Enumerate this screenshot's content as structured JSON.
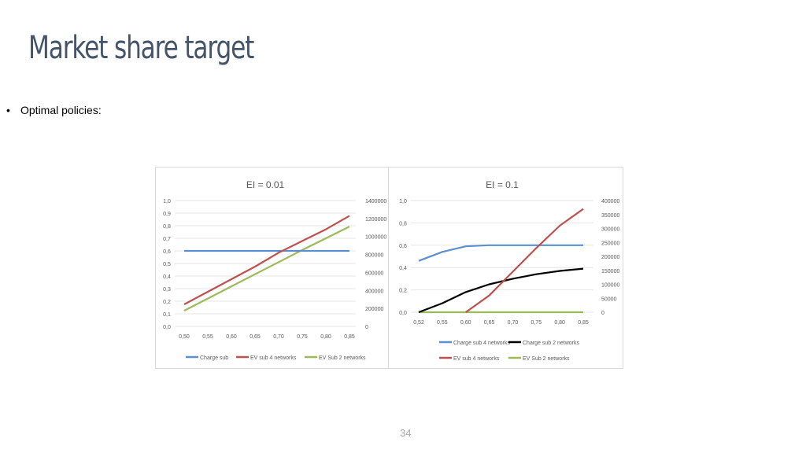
{
  "slide": {
    "title": "Market share target",
    "bullet": "Optimal policies:",
    "page_number": "34"
  },
  "colors": {
    "title": "#44546a",
    "charge_sub": "#5b8fcf",
    "ev_sub_4": "#c0504d",
    "ev_sub_2": "#9bbb59",
    "charge_sub_2": "#000000",
    "grid": "#e6e6e6"
  },
  "chart_data": [
    {
      "type": "line",
      "title": "EI = 0.01",
      "categories": [
        "0,50",
        "0,55",
        "0,60",
        "0,65",
        "0,70",
        "0,75",
        "0,80",
        "0,85"
      ],
      "x": [
        0.5,
        0.55,
        0.6,
        0.65,
        0.7,
        0.75,
        0.8,
        0.85
      ],
      "y_left": {
        "ylim": [
          0,
          1
        ],
        "ticks": [
          "0,0",
          "0,1",
          "0,2",
          "0,3",
          "0,4",
          "0,5",
          "0,6",
          "0,7",
          "0,8",
          "0,9",
          "1,0"
        ]
      },
      "y_right": {
        "ylim": [
          0,
          1400000
        ],
        "ticks": [
          "0",
          "200000",
          "400000",
          "600000",
          "800000",
          "1000000",
          "1200000",
          "1400000"
        ]
      },
      "series": [
        {
          "name": "Charge sub",
          "axis": "left",
          "color": "#5b8fcf",
          "values": [
            0.6,
            0.6,
            0.6,
            0.6,
            0.6,
            0.6,
            0.6,
            0.6
          ]
        },
        {
          "name": "EV sub 4 networks",
          "axis": "right",
          "color": "#c0504d",
          "values": [
            245000,
            385000,
            525000,
            665000,
            820000,
            950000,
            1080000,
            1230000
          ]
        },
        {
          "name": "EV Sub 2 networks",
          "axis": "right",
          "color": "#9bbb59",
          "values": [
            175000,
            310000,
            445000,
            580000,
            715000,
            850000,
            980000,
            1110000
          ]
        }
      ],
      "legend": "bottom",
      "legend_rows": [
        [
          "Charge sub",
          "EV sub 4 networks",
          "EV Sub 2 networks"
        ]
      ],
      "grid": true
    },
    {
      "type": "line",
      "title": "EI = 0.1",
      "categories": [
        "0,52",
        "0,55",
        "0,60",
        "0,65",
        "0,70",
        "0,75",
        "0,80",
        "0,85"
      ],
      "y_left": {
        "ylim": [
          0,
          1
        ],
        "ticks": [
          "0,0",
          "0,2",
          "0,4",
          "0,6",
          "0,8",
          "1,0"
        ]
      },
      "y_right": {
        "ylim": [
          0,
          400000
        ],
        "ticks": [
          "0",
          "50000",
          "100000",
          "150000",
          "200000",
          "250000",
          "300000",
          "350000",
          "400000"
        ]
      },
      "series": [
        {
          "name": "Charge sub 4 networks",
          "axis": "left",
          "color": "#5b8fcf",
          "values": [
            0.46,
            0.54,
            0.59,
            0.6,
            0.6,
            0.6,
            0.6,
            0.6
          ]
        },
        {
          "name": "Charge sub 2 networks",
          "axis": "left",
          "color": "#000000",
          "values": [
            0.0,
            0.08,
            0.18,
            0.25,
            0.3,
            0.34,
            0.37,
            0.39
          ]
        },
        {
          "name": "EV sub 4 networks",
          "axis": "right",
          "color": "#c0504d",
          "values": [
            0,
            0,
            0,
            60000,
            145000,
            230000,
            310000,
            370000
          ]
        },
        {
          "name": "EV Sub 2 networks",
          "axis": "right",
          "color": "#9bbb59",
          "values": [
            0,
            0,
            0,
            0,
            0,
            0,
            0,
            0
          ]
        }
      ],
      "legend": "bottom",
      "legend_rows": [
        [
          "Charge sub 4 networks",
          "Charge sub 2 networks"
        ],
        [
          "EV sub 4 networks",
          "EV Sub 2 networks"
        ]
      ],
      "grid": true
    }
  ]
}
